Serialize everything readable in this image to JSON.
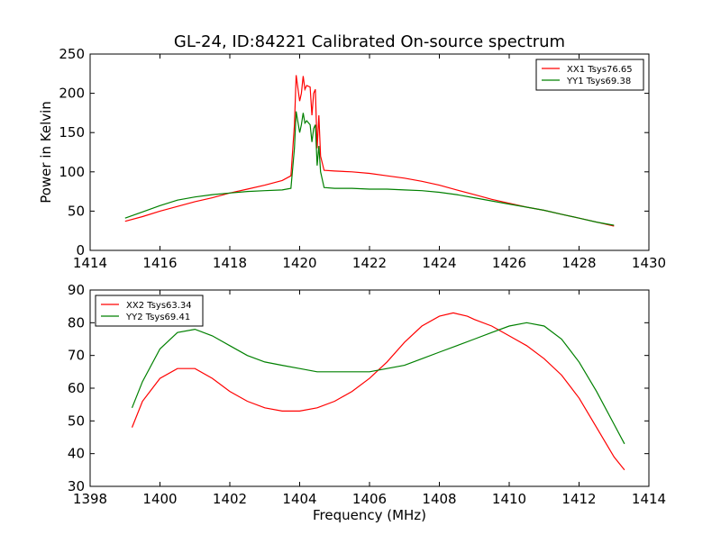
{
  "title": "GL-24, ID:84221 Calibrated On-source spectrum",
  "chart_data": [
    {
      "type": "line",
      "ylabel": "Power in Kelvin",
      "xlabel": "",
      "xlim": [
        1414,
        1430
      ],
      "ylim": [
        0,
        250
      ],
      "xticks": [
        "1414",
        "1416",
        "1418",
        "1420",
        "1422",
        "1424",
        "1426",
        "1428",
        "1430"
      ],
      "yticks": [
        "0",
        "50",
        "100",
        "150",
        "200",
        "250"
      ],
      "legend_position": "top-right",
      "series": [
        {
          "name": "XX1 Tsys76.65",
          "color": "#ff0000",
          "x": [
            1415.0,
            1415.5,
            1416.0,
            1416.5,
            1417.0,
            1417.5,
            1418.0,
            1418.5,
            1419.0,
            1419.5,
            1419.75,
            1419.85,
            1419.9,
            1420.0,
            1420.05,
            1420.1,
            1420.15,
            1420.2,
            1420.3,
            1420.35,
            1420.4,
            1420.45,
            1420.5,
            1420.55,
            1420.6,
            1420.7,
            1421.0,
            1421.5,
            1422.0,
            1422.5,
            1423.0,
            1423.5,
            1424.0,
            1424.5,
            1425.0,
            1425.5,
            1426.0,
            1426.5,
            1427.0,
            1427.5,
            1428.0,
            1428.5,
            1429.0
          ],
          "y": [
            37,
            43,
            50,
            56,
            62,
            67,
            73,
            78,
            83,
            89,
            95,
            160,
            223,
            190,
            200,
            222,
            205,
            210,
            208,
            172,
            200,
            205,
            130,
            172,
            120,
            102,
            101,
            100,
            98,
            95,
            92,
            88,
            83,
            77,
            71,
            65,
            60,
            55,
            51,
            46,
            41,
            36,
            31
          ]
        },
        {
          "name": "YY1 Tsys69.38",
          "color": "#008000",
          "x": [
            1415.0,
            1415.5,
            1416.0,
            1416.5,
            1417.0,
            1417.5,
            1418.0,
            1418.5,
            1419.0,
            1419.5,
            1419.75,
            1419.85,
            1419.9,
            1420.0,
            1420.05,
            1420.1,
            1420.15,
            1420.2,
            1420.3,
            1420.35,
            1420.4,
            1420.45,
            1420.5,
            1420.55,
            1420.6,
            1420.7,
            1421.0,
            1421.5,
            1422.0,
            1422.5,
            1423.0,
            1423.5,
            1424.0,
            1424.5,
            1425.0,
            1425.5,
            1426.0,
            1426.5,
            1427.0,
            1427.5,
            1428.0,
            1428.5,
            1429.0
          ],
          "y": [
            41,
            49,
            57,
            64,
            68,
            71,
            73,
            75,
            76,
            77,
            79,
            130,
            177,
            150,
            160,
            175,
            162,
            165,
            160,
            138,
            155,
            160,
            108,
            133,
            100,
            80,
            79,
            79,
            78,
            78,
            77,
            76,
            74,
            71,
            67,
            63,
            59,
            55,
            51,
            46,
            41,
            36,
            32
          ]
        }
      ]
    },
    {
      "type": "line",
      "ylabel": "",
      "xlabel": "Frequency (MHz)",
      "xlim": [
        1398,
        1414
      ],
      "ylim": [
        30,
        90
      ],
      "xticks": [
        "1398",
        "1400",
        "1402",
        "1404",
        "1406",
        "1408",
        "1410",
        "1412",
        "1414"
      ],
      "yticks": [
        "30",
        "40",
        "50",
        "60",
        "70",
        "80",
        "90"
      ],
      "legend_position": "top-left",
      "series": [
        {
          "name": "XX2 Tsys63.34",
          "color": "#ff0000",
          "x": [
            1399.2,
            1399.5,
            1400.0,
            1400.5,
            1401.0,
            1401.5,
            1402.0,
            1402.5,
            1403.0,
            1403.5,
            1404.0,
            1404.5,
            1405.0,
            1405.5,
            1406.0,
            1406.5,
            1407.0,
            1407.5,
            1408.0,
            1408.4,
            1408.8,
            1409.0,
            1409.5,
            1410.0,
            1410.5,
            1411.0,
            1411.5,
            1412.0,
            1412.5,
            1413.0,
            1413.3
          ],
          "y": [
            48,
            56,
            63,
            66,
            66,
            63,
            59,
            56,
            54,
            53,
            53,
            54,
            56,
            59,
            63,
            68,
            74,
            79,
            82,
            83,
            82,
            81,
            79,
            76,
            73,
            69,
            64,
            57,
            48,
            39,
            35
          ]
        },
        {
          "name": "YY2 Tsys69.41",
          "color": "#008000",
          "x": [
            1399.2,
            1399.5,
            1400.0,
            1400.5,
            1401.0,
            1401.5,
            1402.0,
            1402.5,
            1403.0,
            1403.5,
            1404.0,
            1404.5,
            1405.0,
            1405.5,
            1406.0,
            1406.5,
            1407.0,
            1407.5,
            1408.0,
            1408.5,
            1409.0,
            1409.5,
            1410.0,
            1410.5,
            1411.0,
            1411.5,
            1412.0,
            1412.5,
            1413.0,
            1413.3
          ],
          "y": [
            54,
            62,
            72,
            77,
            78,
            76,
            73,
            70,
            68,
            67,
            66,
            65,
            65,
            65,
            65,
            66,
            67,
            69,
            71,
            73,
            75,
            77,
            79,
            80,
            79,
            75,
            68,
            59,
            49,
            43
          ]
        }
      ]
    }
  ]
}
